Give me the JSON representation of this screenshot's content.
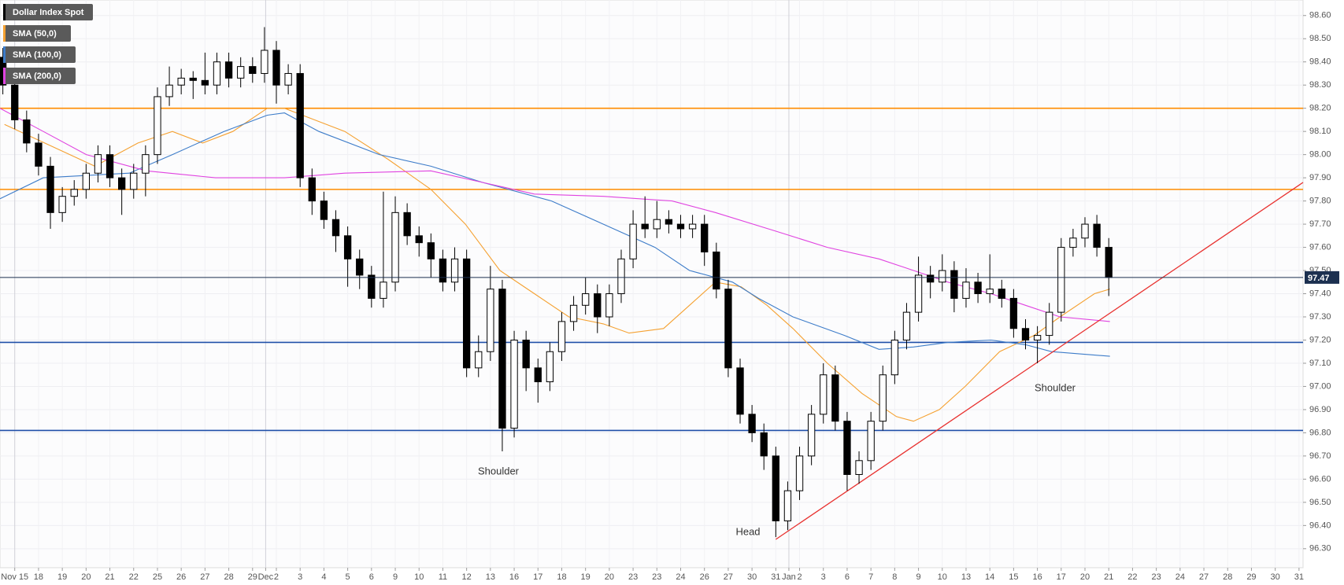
{
  "chart_data": {
    "type": "candlestick",
    "name": "Dollar Index Spot",
    "color": "#000000",
    "up_color": "#ffffff",
    "x": [
      -0.5,
      0,
      0.5,
      1,
      1.5,
      2,
      2.5,
      3,
      3.5,
      4,
      4.5,
      5,
      5.5,
      6,
      6.5,
      7,
      7.5,
      8,
      8.5,
      9,
      9.5,
      10,
      10.5,
      11,
      11.5,
      12,
      12.5,
      13,
      13.5,
      14,
      14.5,
      15,
      15.5,
      16,
      16.5,
      17,
      17.5,
      18,
      18.5,
      19,
      19.5,
      20,
      20.5,
      21,
      21.5,
      22,
      22.5,
      23,
      23.5,
      24,
      24.5,
      25,
      25.5,
      26,
      26.5,
      27,
      27.5,
      28,
      28.5,
      29,
      29.5,
      30,
      30.5,
      31,
      31.5,
      32,
      32.5,
      33,
      33.5,
      34,
      34.5,
      35,
      35.5,
      36,
      36.5,
      37,
      37.5,
      38,
      38.5,
      39,
      39.5,
      40,
      40.5,
      41,
      41.5,
      42,
      42.5,
      43,
      43.5,
      44,
      44.5,
      45,
      45.5,
      46
    ],
    "open": [
      98.42,
      98.3,
      98.15,
      98.05,
      97.95,
      97.75,
      97.82,
      97.85,
      97.92,
      98.0,
      97.9,
      97.85,
      97.92,
      98.0,
      98.25,
      98.3,
      98.33,
      98.32,
      98.3,
      98.4,
      98.33,
      98.38,
      98.35,
      98.45,
      98.3,
      98.35,
      97.9,
      97.8,
      97.72,
      97.65,
      97.55,
      97.48,
      97.38,
      97.45,
      97.75,
      97.65,
      97.62,
      97.55,
      97.45,
      97.55,
      97.08,
      97.15,
      97.42,
      96.82,
      97.2,
      97.08,
      97.02,
      97.15,
      97.28,
      97.35,
      97.4,
      97.3,
      97.4,
      97.55,
      97.7,
      97.68,
      97.72,
      97.7,
      97.68,
      97.7,
      97.58,
      97.42,
      97.08,
      96.88,
      96.8,
      96.7,
      96.42,
      96.55,
      96.7,
      96.88,
      97.05,
      96.85,
      96.62,
      96.68,
      96.85,
      97.05,
      97.2,
      97.32,
      97.48,
      97.45,
      97.5,
      97.38,
      97.45,
      97.4,
      97.42,
      97.38,
      97.25,
      97.2,
      97.22,
      97.32,
      97.6,
      97.64,
      97.7,
      97.6
    ],
    "high": [
      98.46,
      98.34,
      98.19,
      98.09,
      97.99,
      97.86,
      97.89,
      97.96,
      98.04,
      98.04,
      97.94,
      97.96,
      98.04,
      98.29,
      98.38,
      98.37,
      98.36,
      98.44,
      98.44,
      98.44,
      98.42,
      98.42,
      98.55,
      98.49,
      98.39,
      98.39,
      97.94,
      97.84,
      97.76,
      97.69,
      97.59,
      97.52,
      97.84,
      97.82,
      97.79,
      97.69,
      97.66,
      97.59,
      97.6,
      97.59,
      97.22,
      97.52,
      97.46,
      97.24,
      97.24,
      97.12,
      97.19,
      97.32,
      97.39,
      97.47,
      97.44,
      97.44,
      97.59,
      97.76,
      97.82,
      97.8,
      97.76,
      97.74,
      97.74,
      97.74,
      97.62,
      97.46,
      97.12,
      96.92,
      96.84,
      96.74,
      96.59,
      96.74,
      96.92,
      97.1,
      97.09,
      96.89,
      96.72,
      96.89,
      97.09,
      97.24,
      97.36,
      97.56,
      97.52,
      97.57,
      97.54,
      97.51,
      97.49,
      97.57,
      97.46,
      97.42,
      97.29,
      97.26,
      97.36,
      97.64,
      97.68,
      97.73,
      97.74,
      97.64
    ],
    "low": [
      98.26,
      98.11,
      98.01,
      97.91,
      97.68,
      97.71,
      97.78,
      97.81,
      97.88,
      97.86,
      97.74,
      97.81,
      97.82,
      97.96,
      98.21,
      98.26,
      98.24,
      98.26,
      98.26,
      98.29,
      98.29,
      98.31,
      98.31,
      98.22,
      98.26,
      97.86,
      97.74,
      97.68,
      97.58,
      97.43,
      97.42,
      97.34,
      97.34,
      97.41,
      97.61,
      97.56,
      97.47,
      97.41,
      97.41,
      97.04,
      97.04,
      97.11,
      96.72,
      96.78,
      96.98,
      96.93,
      96.98,
      97.11,
      97.24,
      97.31,
      97.23,
      97.26,
      97.36,
      97.51,
      97.64,
      97.64,
      97.66,
      97.64,
      97.64,
      97.52,
      97.38,
      97.04,
      96.84,
      96.76,
      96.64,
      96.35,
      96.38,
      96.51,
      96.66,
      96.84,
      96.81,
      96.55,
      96.58,
      96.64,
      96.81,
      97.01,
      97.16,
      97.28,
      97.38,
      97.41,
      97.32,
      97.34,
      97.36,
      97.36,
      97.34,
      97.21,
      97.16,
      97.1,
      97.18,
      97.28,
      97.56,
      97.6,
      97.56,
      97.39
    ],
    "close": [
      98.3,
      98.15,
      98.05,
      97.95,
      97.75,
      97.82,
      97.85,
      97.92,
      98.0,
      97.9,
      97.85,
      97.92,
      98.0,
      98.25,
      98.3,
      98.33,
      98.32,
      98.3,
      98.4,
      98.33,
      98.38,
      98.35,
      98.45,
      98.3,
      98.35,
      97.9,
      97.8,
      97.72,
      97.65,
      97.55,
      97.48,
      97.38,
      97.45,
      97.75,
      97.65,
      97.62,
      97.55,
      97.45,
      97.55,
      97.08,
      97.15,
      97.42,
      96.82,
      97.2,
      97.08,
      97.02,
      97.15,
      97.28,
      97.35,
      97.4,
      97.3,
      97.4,
      97.55,
      97.7,
      97.68,
      97.72,
      97.7,
      97.68,
      97.7,
      97.58,
      97.42,
      97.08,
      96.88,
      96.8,
      96.7,
      96.42,
      96.55,
      96.7,
      96.88,
      97.05,
      96.85,
      96.62,
      96.68,
      96.85,
      97.05,
      97.2,
      97.32,
      97.48,
      97.45,
      97.5,
      97.38,
      97.45,
      97.4,
      97.42,
      97.38,
      97.25,
      97.2,
      97.22,
      97.32,
      97.6,
      97.64,
      97.7,
      97.6,
      97.47
    ],
    "overlays": [
      {
        "name": "SMA (50,0)",
        "color": "#f5a131",
        "x": [
          -0.43,
          3.37,
          5.18,
          6.63,
          7.9,
          9.17,
          10.62,
          11.34,
          13.88,
          15.69,
          17.5,
          18.95,
          20.4,
          21.85,
          23.3,
          24.75,
          25.83,
          27.28,
          28.37,
          29.46,
          30.54,
          31.63,
          32.72,
          34.17,
          35.62,
          37.07,
          37.79,
          38.88,
          39.96,
          41.41,
          42.86,
          43.95,
          45.4,
          46.05
        ],
        "values": [
          98.13,
          97.95,
          98.05,
          98.1,
          98.05,
          98.1,
          98.2,
          98.2,
          98.1,
          97.98,
          97.85,
          97.7,
          97.5,
          97.4,
          97.3,
          97.27,
          97.23,
          97.25,
          97.35,
          97.45,
          97.43,
          97.35,
          97.25,
          97.1,
          96.97,
          96.87,
          96.85,
          96.9,
          97.0,
          97.15,
          97.22,
          97.3,
          97.4,
          97.42
        ]
      },
      {
        "name": "SMA (100,0)",
        "color": "#3d7cc9",
        "x": [
          -0.62,
          1.2,
          4.82,
          6.63,
          8.8,
          10.62,
          11.34,
          12.79,
          15.33,
          17.5,
          19.67,
          22.57,
          24.75,
          26.92,
          28.37,
          30.18,
          31.27,
          32.72,
          34.89,
          36.34,
          37.79,
          39.24,
          41.05,
          42.5,
          43.59,
          46.05
        ],
        "values": [
          97.81,
          97.9,
          97.92,
          98.0,
          98.1,
          98.17,
          98.18,
          98.1,
          98.0,
          97.95,
          97.88,
          97.8,
          97.7,
          97.6,
          97.5,
          97.45,
          97.38,
          97.3,
          97.22,
          97.16,
          97.17,
          97.19,
          97.2,
          97.18,
          97.15,
          97.13
        ]
      },
      {
        "name": "SMA (200,0)",
        "color": "#e043e0",
        "x": [
          -0.62,
          1.2,
          3.01,
          5.54,
          8.44,
          11.34,
          13.88,
          17.5,
          19.67,
          21.85,
          24.75,
          27.64,
          29.46,
          31.99,
          34.17,
          36.34,
          37.79,
          39.24,
          41.05,
          42.5,
          43.95,
          46.05
        ],
        "values": [
          98.2,
          98.1,
          98.0,
          97.93,
          97.9,
          97.9,
          97.92,
          97.93,
          97.88,
          97.83,
          97.82,
          97.8,
          97.75,
          97.67,
          97.6,
          97.55,
          97.5,
          97.45,
          97.4,
          97.35,
          97.3,
          97.28
        ]
      }
    ],
    "levels": [
      {
        "value": 98.2,
        "color": "#ff8c00"
      },
      {
        "value": 97.85,
        "color": "#ff8c00"
      },
      {
        "value": 97.19,
        "color": "#1f4fa8"
      },
      {
        "value": 96.81,
        "color": "#1f4fa8"
      }
    ],
    "trendline": {
      "color": "#e8312f",
      "x": [
        32.0,
        54.17
      ],
      "values": [
        96.34,
        97.88
      ]
    },
    "last": {
      "value": 97.47,
      "color": "#1c3050"
    },
    "annotations": [
      "Shoulder",
      "Head",
      "Shoulder"
    ],
    "xlim": [
      -0.62,
      54.17
    ],
    "ylim": [
      96.218,
      98.667
    ],
    "grid": true,
    "xticks": [
      {
        "value": 0,
        "label": "Nov 15"
      },
      {
        "value": 1,
        "label": "18"
      },
      {
        "value": 2,
        "label": "19"
      },
      {
        "value": 3,
        "label": "20"
      },
      {
        "value": 4,
        "label": "21"
      },
      {
        "value": 5,
        "label": "22"
      },
      {
        "value": 6,
        "label": "25"
      },
      {
        "value": 7,
        "label": "26"
      },
      {
        "value": 8,
        "label": "27"
      },
      {
        "value": 9,
        "label": "28"
      },
      {
        "value": 10,
        "label": "29"
      },
      {
        "value": 10.55,
        "label": "Dec"
      },
      {
        "value": 11,
        "label": "2"
      },
      {
        "value": 12,
        "label": "3"
      },
      {
        "value": 13,
        "label": "4"
      },
      {
        "value": 14,
        "label": "5"
      },
      {
        "value": 15,
        "label": "6"
      },
      {
        "value": 16,
        "label": "9"
      },
      {
        "value": 17,
        "label": "10"
      },
      {
        "value": 18,
        "label": "11"
      },
      {
        "value": 19,
        "label": "12"
      },
      {
        "value": 20,
        "label": "13"
      },
      {
        "value": 21,
        "label": "16"
      },
      {
        "value": 22,
        "label": "17"
      },
      {
        "value": 23,
        "label": "18"
      },
      {
        "value": 24,
        "label": "19"
      },
      {
        "value": 25,
        "label": "20"
      },
      {
        "value": 26,
        "label": "23"
      },
      {
        "value": 27,
        "label": "23"
      },
      {
        "value": 28,
        "label": "24"
      },
      {
        "value": 29,
        "label": "26"
      },
      {
        "value": 30,
        "label": "27"
      },
      {
        "value": 31,
        "label": "30"
      },
      {
        "value": 32,
        "label": "31"
      },
      {
        "value": 32.55,
        "label": "Jan"
      },
      {
        "value": 33,
        "label": "2"
      },
      {
        "value": 34,
        "label": "3"
      },
      {
        "value": 35,
        "label": "6"
      },
      {
        "value": 36,
        "label": "7"
      },
      {
        "value": 37,
        "label": "8"
      },
      {
        "value": 38,
        "label": "9"
      },
      {
        "value": 39,
        "label": "10"
      },
      {
        "value": 40,
        "label": "13"
      },
      {
        "value": 41,
        "label": "14"
      },
      {
        "value": 42,
        "label": "15"
      },
      {
        "value": 43,
        "label": "16"
      },
      {
        "value": 44,
        "label": "17"
      },
      {
        "value": 45,
        "label": "20"
      },
      {
        "value": 46,
        "label": "21"
      },
      {
        "value": 47,
        "label": "22"
      },
      {
        "value": 48,
        "label": "23"
      },
      {
        "value": 49,
        "label": "24"
      },
      {
        "value": 50,
        "label": "27"
      },
      {
        "value": 51,
        "label": "28"
      },
      {
        "value": 52,
        "label": "29"
      },
      {
        "value": 53,
        "label": "30"
      },
      {
        "value": 54,
        "label": "31"
      }
    ],
    "yticks": [
      {
        "value": 96.3,
        "label": "96.30"
      },
      {
        "value": 96.4,
        "label": "96.40"
      },
      {
        "value": 96.5,
        "label": "96.50"
      },
      {
        "value": 96.6,
        "label": "96.60"
      },
      {
        "value": 96.7,
        "label": "96.70"
      },
      {
        "value": 96.8,
        "label": "96.80"
      },
      {
        "value": 96.9,
        "label": "96.90"
      },
      {
        "value": 97.0,
        "label": "97.00"
      },
      {
        "value": 97.1,
        "label": "97.10"
      },
      {
        "value": 97.2,
        "label": "97.20"
      },
      {
        "value": 97.3,
        "label": "97.30"
      },
      {
        "value": 97.4,
        "label": "97.40"
      },
      {
        "value": 97.5,
        "label": "97.50"
      },
      {
        "value": 97.6,
        "label": "97.60"
      },
      {
        "value": 97.7,
        "label": "97.70"
      },
      {
        "value": 97.8,
        "label": "97.80"
      },
      {
        "value": 97.9,
        "label": "97.90"
      },
      {
        "value": 98.0,
        "label": "98.00"
      },
      {
        "value": 98.1,
        "label": "98.10"
      },
      {
        "value": 98.2,
        "label": "98.20"
      },
      {
        "value": 98.3,
        "label": "98.30"
      },
      {
        "value": 98.4,
        "label": "98.40"
      },
      {
        "value": 98.5,
        "label": "98.50"
      },
      {
        "value": 98.6,
        "label": "98.60"
      }
    ]
  }
}
